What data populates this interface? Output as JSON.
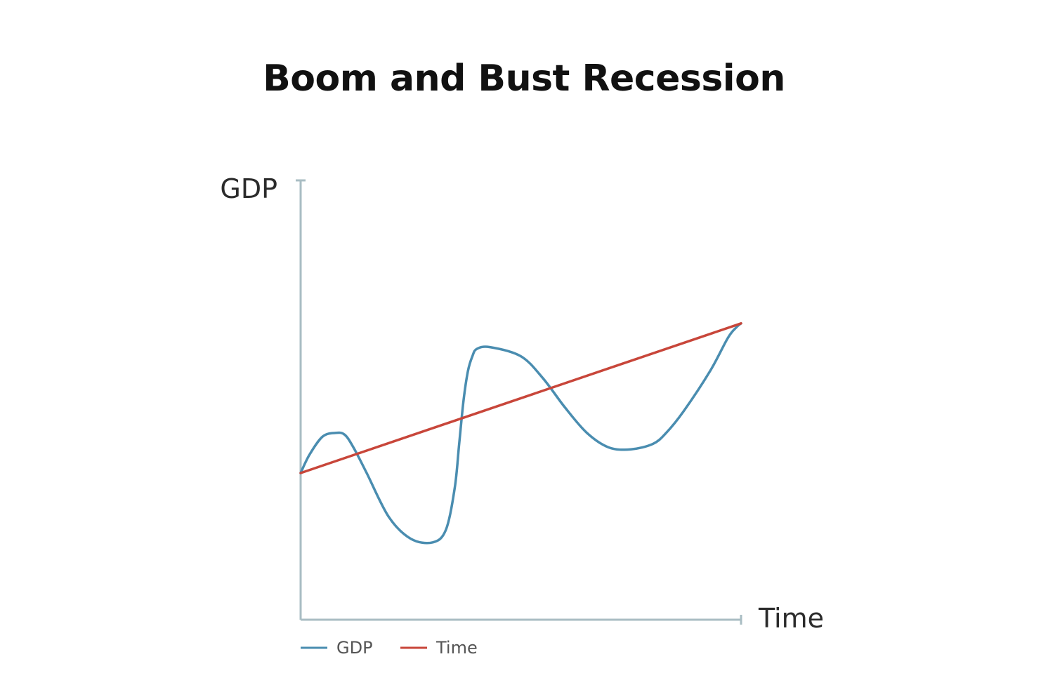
{
  "chart_data": {
    "type": "line",
    "title": "Boom and Bust Recession",
    "xlabel": "Time",
    "ylabel": "GDP",
    "xlim": [
      0,
      10
    ],
    "ylim": [
      0,
      10
    ],
    "grid": false,
    "legend_position": "bottom-left",
    "series": [
      {
        "name": "GDP",
        "color": "#4a8db0",
        "x": [
          0,
          0.2,
          0.5,
          0.8,
          1.0,
          1.2,
          1.5,
          2.0,
          2.5,
          3.0,
          3.3,
          3.5,
          3.6,
          3.7,
          3.8,
          3.9,
          4.0,
          4.3,
          5.0,
          5.5,
          6.0,
          6.5,
          7.0,
          7.5,
          8.0,
          8.3,
          8.7,
          9.3,
          9.7,
          9.9,
          10.0
        ],
        "y": [
          3.0,
          3.5,
          4.0,
          4.1,
          4.05,
          3.7,
          3.0,
          1.8,
          1.2,
          1.1,
          1.45,
          2.6,
          3.8,
          5.0,
          5.8,
          6.2,
          6.4,
          6.45,
          6.2,
          5.6,
          4.8,
          4.1,
          3.7,
          3.65,
          3.8,
          4.1,
          4.7,
          5.8,
          6.7,
          7.0,
          7.1
        ]
      },
      {
        "name": "Time",
        "color": "#c8463a",
        "x": [
          0,
          10
        ],
        "y": [
          3.0,
          7.1
        ]
      }
    ]
  },
  "axis_color": "#a9bdc3"
}
